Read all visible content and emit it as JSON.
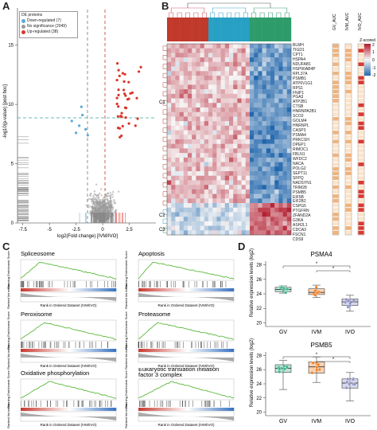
{
  "panels": {
    "A": "A",
    "B": "B",
    "C": "C",
    "D": "D"
  },
  "volcano": {
    "legend_title": "DE proteins",
    "legend_items": [
      {
        "label": "Down-regulated (7)",
        "color": "#5aa9d6"
      },
      {
        "label": "No significance (2049)",
        "color": "#999999"
      },
      {
        "label": "Up-regulated (38)",
        "color": "#d9362b"
      }
    ],
    "xlabel": "log2(Fold change) [IVM/IVO]",
    "ylabel": "-log10(p-value) [post hoc]",
    "xticks": [
      "-7.5",
      "-5",
      "-2.5",
      "0",
      "2.5"
    ],
    "yticks": [
      "0",
      "5",
      "10",
      "15"
    ]
  },
  "heatmap": {
    "genes": [
      "BLMH",
      "TIGD1",
      "CPT1",
      "HSPA4",
      "NDUFAB1",
      "HSP90AB4P",
      "RPL37A",
      "PSMB1",
      "ATP6V1G1",
      "RPS1",
      "FNIP1",
      "PGA3",
      "ATP2B1",
      "CTSB",
      "HNRNPA2B1",
      "SCO2",
      "GOLM4",
      "HNRNPL",
      "CASP3",
      "PSMA4",
      "PRKCSH",
      "DPEP1",
      "RIMOC1",
      "FBLN1",
      "WFDC2",
      "NACA",
      "POLG2",
      "SEPT11",
      "SFPQ",
      "NADSYN1",
      "TRIM28",
      "PSMB5",
      "EIF5B",
      "EIF2B2",
      "CSPG5",
      "PTGFRN",
      "ZFAND2A",
      "G3KA",
      "ASH2L1",
      "CDCA3",
      "FSCN1",
      "CDS9"
    ],
    "clusters": [
      "C1",
      "C2",
      "C3"
    ],
    "legend_title": "Z-scored",
    "legend_ticks": [
      "2",
      "1",
      "0",
      "-1",
      "-2"
    ],
    "side_labels": [
      "GV_AUC",
      "IVM_AUC",
      "IVO_AUC"
    ]
  },
  "gsea": [
    {
      "title": "Spliceosome"
    },
    {
      "title": "Apoptosis"
    },
    {
      "title": "Peroxisome"
    },
    {
      "title": "Proteasome"
    },
    {
      "title": "Oxidative phosphorylation"
    },
    {
      "title": "Eukaryotic translation initiation factor 3 complex"
    }
  ],
  "gsea_axes": {
    "es_label": "Running Enrichment Score",
    "rank_label": "Ranked list metric",
    "xlabel": "Rank in Ordered Dataset (IVM/IVO)",
    "xticks": [
      "0",
      "5000",
      "10000",
      "15000",
      "20000"
    ]
  },
  "boxplots": {
    "ylabel": "Relative expression levels (log2)",
    "groups": [
      "GV",
      "IVM",
      "IVO"
    ],
    "colors": {
      "GV": "#3bb58e",
      "IVM": "#f07f22",
      "IVO": "#8d8fc6"
    },
    "plots": [
      {
        "title": "PSMA4",
        "yticks": [
          "20",
          "22",
          "24",
          "26",
          "28"
        ],
        "significance": [
          "*",
          "*"
        ]
      },
      {
        "title": "PSMB5",
        "yticks": [
          "20",
          "22",
          "24",
          "26",
          "28"
        ],
        "significance": [
          "*",
          "*"
        ]
      }
    ]
  }
}
